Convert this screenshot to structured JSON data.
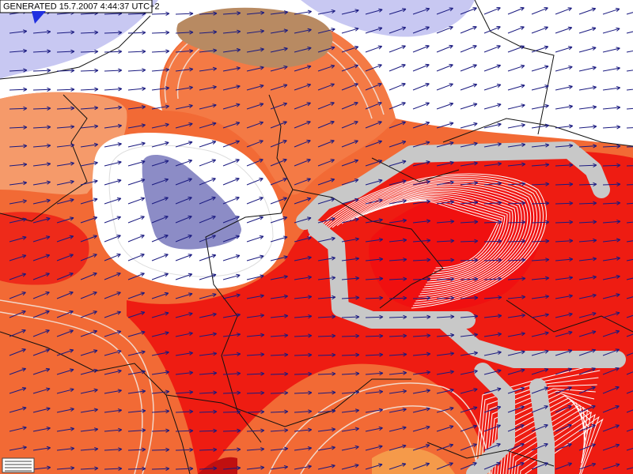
{
  "header": {
    "title": "GENERATED 15.7.2007 4:44:37 UTC+2"
  }
}
